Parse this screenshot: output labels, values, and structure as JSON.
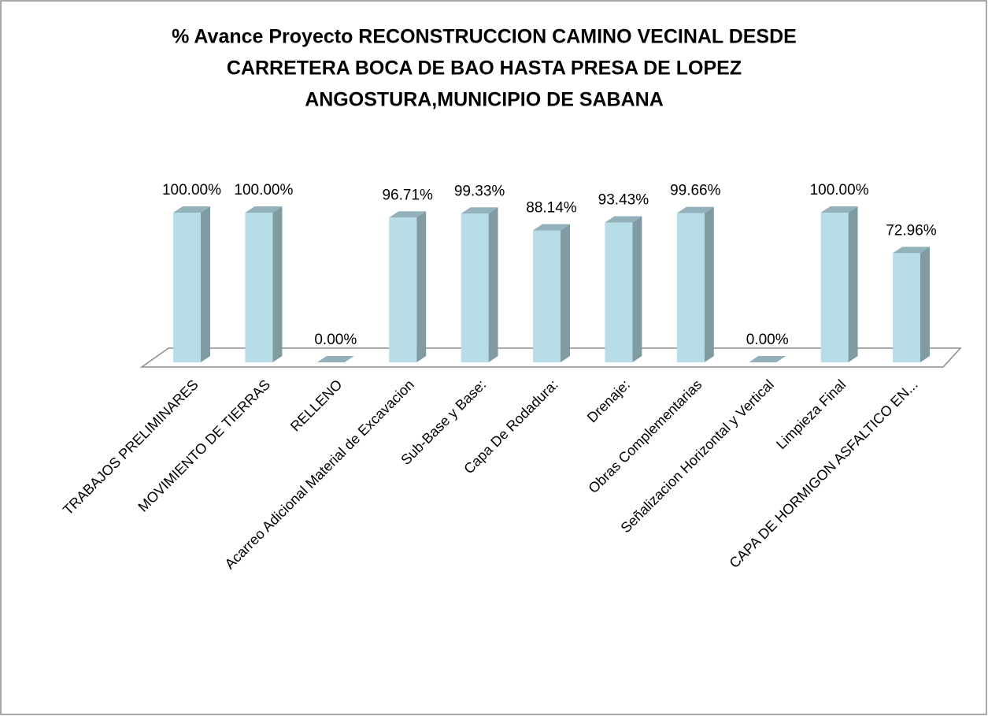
{
  "chart_data": {
    "type": "bar3d",
    "title": [
      "% Avance Proyecto RECONSTRUCCION CAMINO VECINAL DESDE",
      "CARRETERA BOCA DE BAO HASTA PRESA DE LOPEZ",
      "ANGOSTURA,MUNICIPIO DE SABANA"
    ],
    "categories": [
      "TRABAJOS PRELIMINARES",
      "MOVIMIENTO DE TIERRAS",
      "RELLENO",
      "Acarreo Adicional Material de Excavacion",
      "Sub-Base y Base:",
      "Capa De Rodadura:",
      "Drenaje:",
      "Obras Complementarias",
      "Señalizacion Horizontal y Vertical",
      "Limpieza Final",
      "CAPA DE HORMIGON ASFALTICO EN..."
    ],
    "values": [
      100,
      100,
      0,
      96.71,
      99.33,
      88.14,
      93.43,
      99.66,
      0,
      100,
      72.96
    ],
    "value_labels": [
      "100.00%",
      "100.00%",
      "0.00%",
      "96.71%",
      "99.33%",
      "88.14%",
      "93.43%",
      "99.66%",
      "0.00%",
      "100.00%",
      "72.96%"
    ],
    "color": "#b7dde8"
  }
}
